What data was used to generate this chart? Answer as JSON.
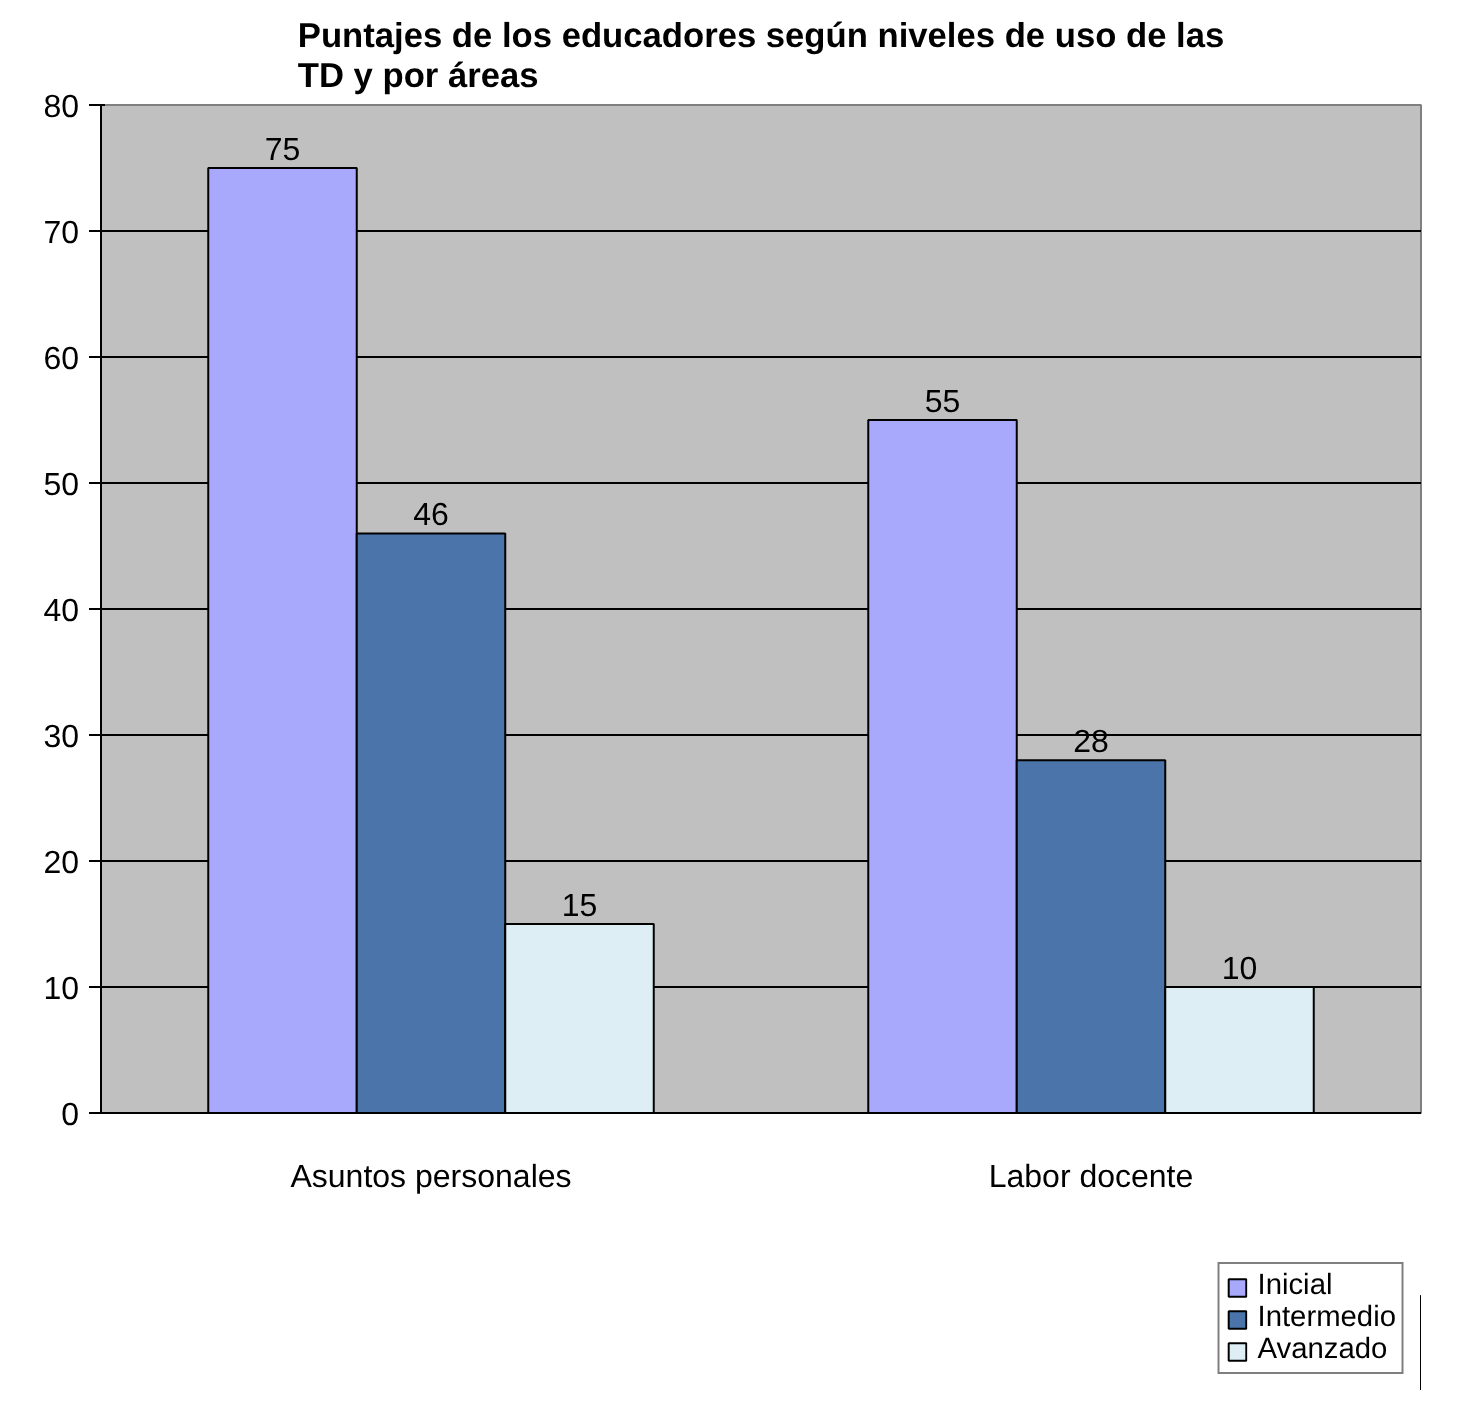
{
  "chart_data": {
    "type": "bar",
    "title": "Puntajes de los educadores según niveles de uso de las TD y por áreas",
    "categories": [
      "Asuntos personales",
      "Labor docente"
    ],
    "series": [
      {
        "name": "Inicial",
        "color": "#a8a8fc",
        "values": [
          75,
          55
        ]
      },
      {
        "name": "Intermedio",
        "color": "#4a74aa",
        "values": [
          46,
          28
        ]
      },
      {
        "name": "Avanzado",
        "color": "#ddeff5",
        "values": [
          15,
          10
        ]
      }
    ],
    "ylim": [
      0,
      80
    ],
    "yticks": [
      0,
      10,
      20,
      30,
      40,
      50,
      60,
      70,
      80
    ],
    "grid": "y",
    "legend": "bottom right",
    "data_labels": true
  }
}
